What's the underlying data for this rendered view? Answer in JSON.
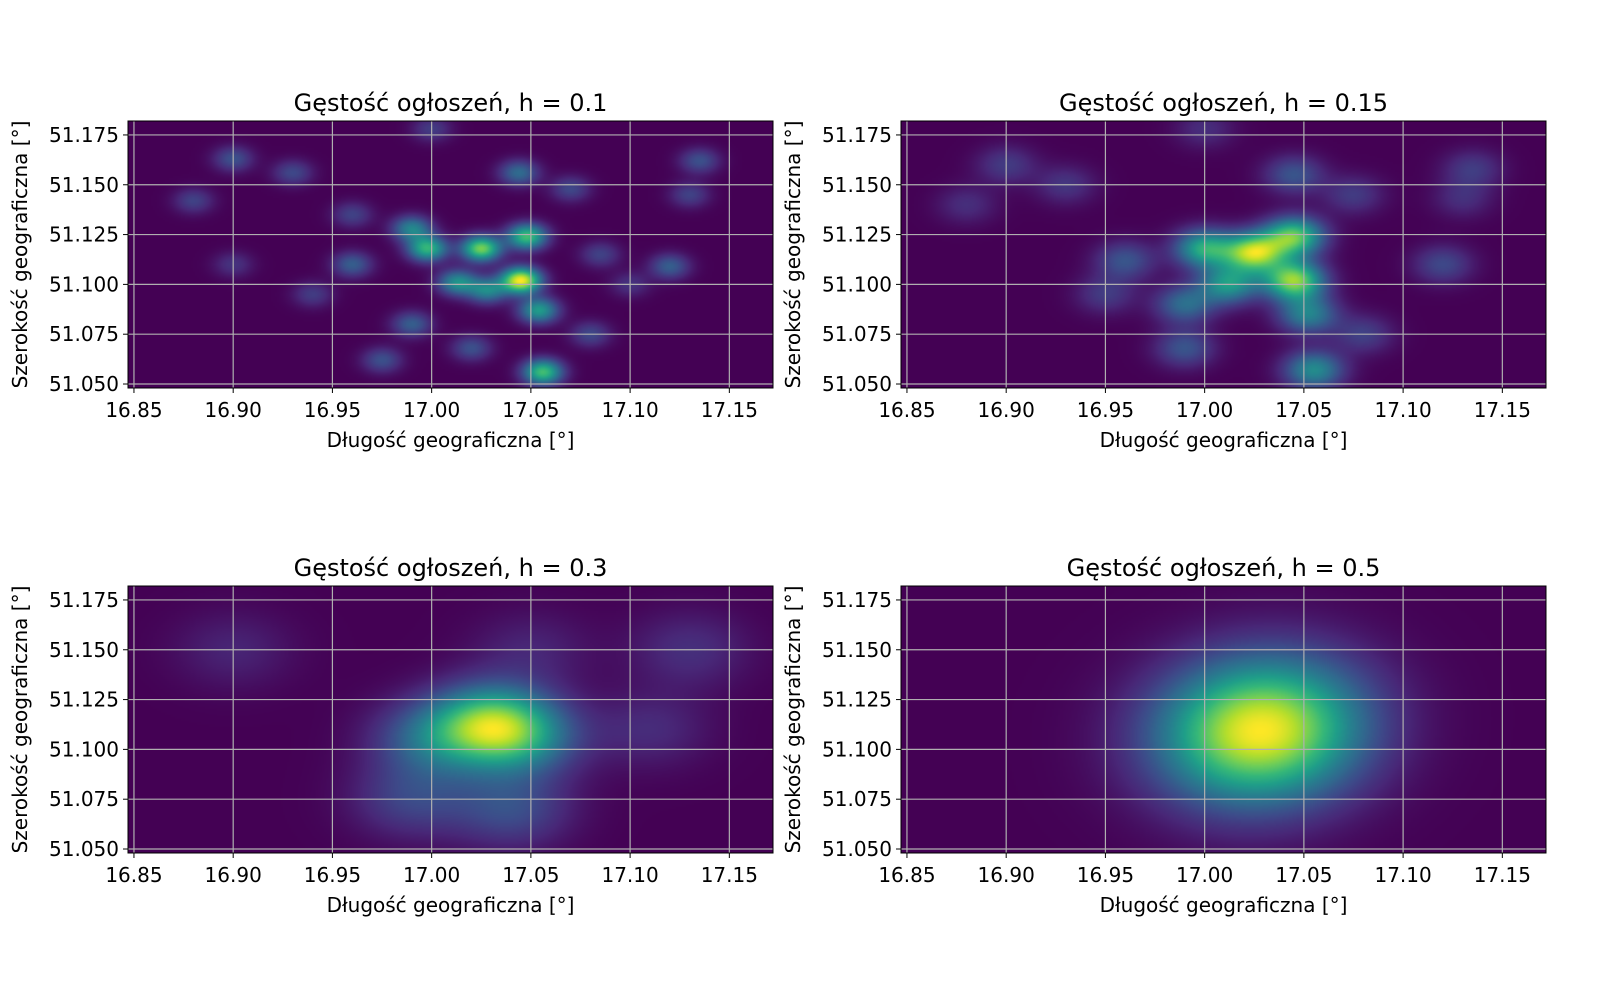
{
  "chart_data": [
    {
      "type": "heatmap",
      "title": "Gęstość ogłoszeń, h = 0.1",
      "bandwidth": 0.1,
      "xlabel": "Długość geograficzna [°]",
      "ylabel": "Szerokość geograficzna [°]",
      "xlim": [
        16.847,
        17.172
      ],
      "ylim": [
        51.048,
        51.182
      ],
      "xticks": [
        "16.85",
        "16.90",
        "16.95",
        "17.00",
        "17.05",
        "17.10",
        "17.15"
      ],
      "yticks": [
        "51.050",
        "51.075",
        "51.100",
        "51.125",
        "51.150",
        "51.175"
      ],
      "grid": true,
      "colormap": "viridis",
      "hotspots": [
        {
          "lon": 17.045,
          "lat": 51.102,
          "intensity": 1.0
        },
        {
          "lon": 17.025,
          "lat": 51.118,
          "intensity": 0.8
        },
        {
          "lon": 17.048,
          "lat": 51.124,
          "intensity": 0.7
        },
        {
          "lon": 16.998,
          "lat": 51.118,
          "intensity": 0.65
        },
        {
          "lon": 17.056,
          "lat": 51.056,
          "intensity": 0.7
        },
        {
          "lon": 17.054,
          "lat": 51.087,
          "intensity": 0.55
        },
        {
          "lon": 17.013,
          "lat": 51.101,
          "intensity": 0.5
        },
        {
          "lon": 17.028,
          "lat": 51.097,
          "intensity": 0.45
        },
        {
          "lon": 16.99,
          "lat": 51.128,
          "intensity": 0.45
        },
        {
          "lon": 17.044,
          "lat": 51.156,
          "intensity": 0.35
        },
        {
          "lon": 16.96,
          "lat": 51.11,
          "intensity": 0.3
        },
        {
          "lon": 17.12,
          "lat": 51.109,
          "intensity": 0.3
        },
        {
          "lon": 16.9,
          "lat": 51.163,
          "intensity": 0.25
        },
        {
          "lon": 17.135,
          "lat": 51.162,
          "intensity": 0.25
        },
        {
          "lon": 16.93,
          "lat": 51.156,
          "intensity": 0.22
        },
        {
          "lon": 17.07,
          "lat": 51.148,
          "intensity": 0.22
        },
        {
          "lon": 16.99,
          "lat": 51.08,
          "intensity": 0.3
        },
        {
          "lon": 17.08,
          "lat": 51.075,
          "intensity": 0.22
        },
        {
          "lon": 16.88,
          "lat": 51.142,
          "intensity": 0.2
        },
        {
          "lon": 17.13,
          "lat": 51.145,
          "intensity": 0.2
        },
        {
          "lon": 16.975,
          "lat": 51.062,
          "intensity": 0.25
        },
        {
          "lon": 17.02,
          "lat": 51.068,
          "intensity": 0.25
        },
        {
          "lon": 16.96,
          "lat": 51.135,
          "intensity": 0.2
        },
        {
          "lon": 17.085,
          "lat": 51.115,
          "intensity": 0.2
        },
        {
          "lon": 16.94,
          "lat": 51.095,
          "intensity": 0.18
        },
        {
          "lon": 16.9,
          "lat": 51.11,
          "intensity": 0.15
        },
        {
          "lon": 17.0,
          "lat": 51.178,
          "intensity": 0.18
        },
        {
          "lon": 17.1,
          "lat": 51.1,
          "intensity": 0.15
        }
      ]
    },
    {
      "type": "heatmap",
      "title": "Gęstość ogłoszeń, h = 0.15",
      "bandwidth": 0.15,
      "xlabel": "Długość geograficzna [°]",
      "ylabel": "Szerokość geograficzna [°]",
      "xlim": [
        16.847,
        17.172
      ],
      "ylim": [
        51.048,
        51.182
      ],
      "xticks": [
        "16.85",
        "16.90",
        "16.95",
        "17.00",
        "17.05",
        "17.10",
        "17.15"
      ],
      "yticks": [
        "51.050",
        "51.075",
        "51.100",
        "51.125",
        "51.150",
        "51.175"
      ],
      "grid": true,
      "colormap": "viridis",
      "hotspots": [
        {
          "lon": 17.025,
          "lat": 51.116,
          "intensity": 1.0
        },
        {
          "lon": 17.045,
          "lat": 51.102,
          "intensity": 0.95
        },
        {
          "lon": 17.045,
          "lat": 51.124,
          "intensity": 0.85
        },
        {
          "lon": 17.0,
          "lat": 51.118,
          "intensity": 0.7
        },
        {
          "lon": 17.012,
          "lat": 51.1,
          "intensity": 0.6
        },
        {
          "lon": 17.052,
          "lat": 51.085,
          "intensity": 0.5
        },
        {
          "lon": 17.055,
          "lat": 51.057,
          "intensity": 0.55
        },
        {
          "lon": 16.99,
          "lat": 51.09,
          "intensity": 0.4
        },
        {
          "lon": 16.96,
          "lat": 51.112,
          "intensity": 0.3
        },
        {
          "lon": 17.045,
          "lat": 51.155,
          "intensity": 0.3
        },
        {
          "lon": 17.12,
          "lat": 51.11,
          "intensity": 0.25
        },
        {
          "lon": 16.9,
          "lat": 51.16,
          "intensity": 0.2
        },
        {
          "lon": 17.135,
          "lat": 51.158,
          "intensity": 0.2
        },
        {
          "lon": 16.99,
          "lat": 51.068,
          "intensity": 0.3
        },
        {
          "lon": 17.08,
          "lat": 51.075,
          "intensity": 0.22
        },
        {
          "lon": 16.93,
          "lat": 51.15,
          "intensity": 0.18
        },
        {
          "lon": 17.075,
          "lat": 51.145,
          "intensity": 0.2
        },
        {
          "lon": 16.88,
          "lat": 51.14,
          "intensity": 0.15
        },
        {
          "lon": 17.13,
          "lat": 51.143,
          "intensity": 0.15
        },
        {
          "lon": 16.95,
          "lat": 51.095,
          "intensity": 0.2
        },
        {
          "lon": 17.0,
          "lat": 51.178,
          "intensity": 0.15
        }
      ]
    },
    {
      "type": "heatmap",
      "title": "Gęstość ogłoszeń, h = 0.3",
      "bandwidth": 0.3,
      "xlabel": "Długość geograficzna [°]",
      "ylabel": "Szerokość geograficzna [°]",
      "xlim": [
        16.847,
        17.172
      ],
      "ylim": [
        51.048,
        51.182
      ],
      "xticks": [
        "16.85",
        "16.90",
        "16.95",
        "17.00",
        "17.05",
        "17.10",
        "17.15"
      ],
      "yticks": [
        "51.050",
        "51.075",
        "51.100",
        "51.125",
        "51.150",
        "51.175"
      ],
      "grid": true,
      "colormap": "viridis",
      "hotspots": [
        {
          "lon": 17.03,
          "lat": 51.113,
          "intensity": 1.0
        },
        {
          "lon": 17.045,
          "lat": 51.105,
          "intensity": 0.5
        },
        {
          "lon": 17.0,
          "lat": 51.105,
          "intensity": 0.45
        },
        {
          "lon": 17.04,
          "lat": 51.07,
          "intensity": 0.35
        },
        {
          "lon": 16.99,
          "lat": 51.075,
          "intensity": 0.3
        },
        {
          "lon": 17.13,
          "lat": 51.15,
          "intensity": 0.2
        },
        {
          "lon": 17.11,
          "lat": 51.11,
          "intensity": 0.18
        },
        {
          "lon": 16.9,
          "lat": 51.15,
          "intensity": 0.15
        },
        {
          "lon": 17.05,
          "lat": 51.15,
          "intensity": 0.15
        }
      ]
    },
    {
      "type": "heatmap",
      "title": "Gęstość ogłoszeń, h = 0.5",
      "bandwidth": 0.5,
      "xlabel": "Długość geograficzna [°]",
      "ylabel": "Szerokość geograficzna [°]",
      "xlim": [
        16.847,
        17.172
      ],
      "ylim": [
        51.048,
        51.182
      ],
      "xticks": [
        "16.85",
        "16.90",
        "16.95",
        "17.00",
        "17.05",
        "17.10",
        "17.15"
      ],
      "yticks": [
        "51.050",
        "51.075",
        "51.100",
        "51.125",
        "51.150",
        "51.175"
      ],
      "grid": true,
      "colormap": "viridis",
      "hotspots": [
        {
          "lon": 17.028,
          "lat": 51.11,
          "intensity": 1.0
        },
        {
          "lon": 17.02,
          "lat": 51.09,
          "intensity": 0.25
        },
        {
          "lon": 17.04,
          "lat": 51.13,
          "intensity": 0.2
        }
      ]
    }
  ]
}
